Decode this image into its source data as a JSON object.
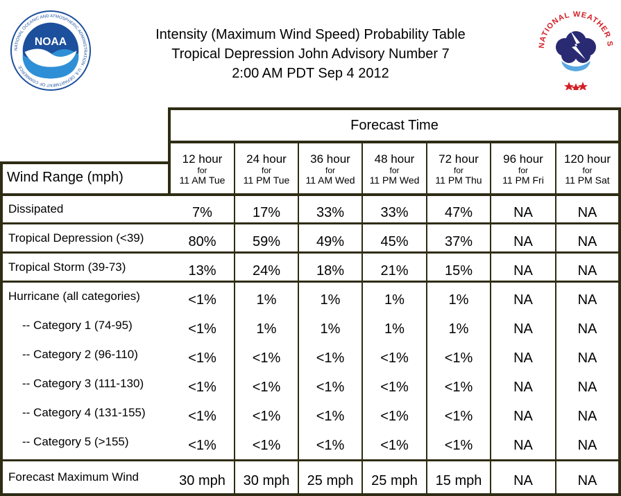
{
  "header": {
    "title_line1": "Intensity (Maximum Wind Speed) Probability Table",
    "title_line2": "Tropical Depression John Advisory Number 7",
    "title_line3": "2:00 AM PDT Sep 4 2012"
  },
  "logos": {
    "left": {
      "icon": "noaa-logo",
      "text": "NOAA",
      "ring_text": "NATIONAL OCEANIC AND ATMOSPHERIC ADMINISTRATION · U.S. DEPARTMENT OF COMMERCE"
    },
    "right": {
      "icon": "nws-logo",
      "ring_text": "NATIONAL WEATHER SERVICE"
    }
  },
  "table": {
    "forecast_time_label": "Forecast Time",
    "wind_range_label": "Wind Range (mph)",
    "columns": [
      {
        "hour": "12 hour",
        "for": "for",
        "time": "11 AM Tue"
      },
      {
        "hour": "24 hour",
        "for": "for",
        "time": "11 PM Tue"
      },
      {
        "hour": "36 hour",
        "for": "for",
        "time": "11 AM Wed"
      },
      {
        "hour": "48 hour",
        "for": "for",
        "time": "11 PM Wed"
      },
      {
        "hour": "72 hour",
        "for": "for",
        "time": "11 PM Thu"
      },
      {
        "hour": "96 hour",
        "for": "for",
        "time": "11 PM Fri"
      },
      {
        "hour": "120 hour",
        "for": "for",
        "time": "11 PM Sat"
      }
    ],
    "rows": [
      {
        "label": "Dissipated",
        "values": [
          "7%",
          "17%",
          "33%",
          "33%",
          "47%",
          "NA",
          "NA"
        ]
      },
      {
        "label": "Tropical Depression (<39)",
        "values": [
          "80%",
          "59%",
          "49%",
          "45%",
          "37%",
          "NA",
          "NA"
        ]
      },
      {
        "label": "Tropical Storm (39-73)",
        "values": [
          "13%",
          "24%",
          "18%",
          "21%",
          "15%",
          "NA",
          "NA"
        ]
      },
      {
        "label": "Hurricane (all categories)",
        "values": [
          "<1%",
          "1%",
          "1%",
          "1%",
          "1%",
          "NA",
          "NA"
        ]
      },
      {
        "label": "-- Category 1 (74-95)",
        "values": [
          "<1%",
          "1%",
          "1%",
          "1%",
          "1%",
          "NA",
          "NA"
        ]
      },
      {
        "label": "-- Category 2 (96-110)",
        "values": [
          "<1%",
          "<1%",
          "<1%",
          "<1%",
          "<1%",
          "NA",
          "NA"
        ]
      },
      {
        "label": "-- Category 3 (111-130)",
        "values": [
          "<1%",
          "<1%",
          "<1%",
          "<1%",
          "<1%",
          "NA",
          "NA"
        ]
      },
      {
        "label": "-- Category 4 (131-155)",
        "values": [
          "<1%",
          "<1%",
          "<1%",
          "<1%",
          "<1%",
          "NA",
          "NA"
        ]
      },
      {
        "label": "-- Category 5 (>155)",
        "values": [
          "<1%",
          "<1%",
          "<1%",
          "<1%",
          "<1%",
          "NA",
          "NA"
        ]
      },
      {
        "label": "Forecast Maximum Wind",
        "values": [
          "30 mph",
          "30 mph",
          "25 mph",
          "25 mph",
          "15 mph",
          "NA",
          "NA"
        ]
      }
    ]
  },
  "colors": {
    "border": "#2e2c14",
    "noaa_blue": "#1c4f9c",
    "nws_red": "#d21f26",
    "nws_purple": "#2a2a72"
  }
}
